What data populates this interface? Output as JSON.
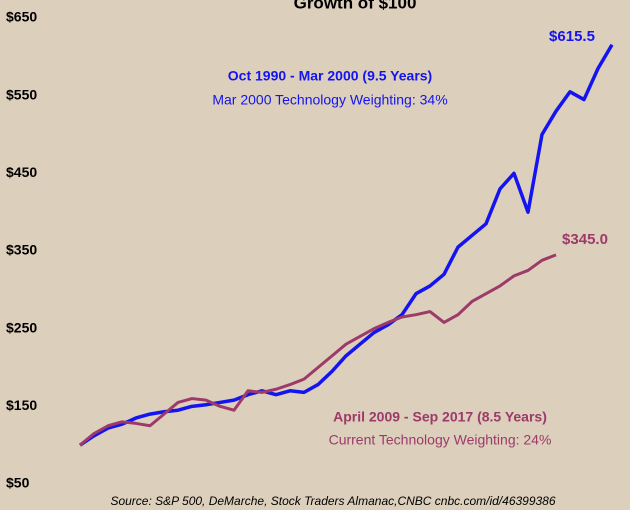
{
  "chart_data": {
    "type": "line",
    "title": "Growth of $100",
    "source": "Source: S&P 500, DeMarche, Stock Traders Almanac,CNBC cnbc.com/id/46399386",
    "ylim": [
      50,
      650
    ],
    "yticks": [
      {
        "value": 50,
        "label": "$50"
      },
      {
        "value": 150,
        "label": "$150"
      },
      {
        "value": 250,
        "label": "$250"
      },
      {
        "value": 350,
        "label": "$350"
      },
      {
        "value": 450,
        "label": "$450"
      },
      {
        "value": 550,
        "label": "$550"
      },
      {
        "value": 650,
        "label": "$650"
      }
    ],
    "series": [
      {
        "name": "Oct 1990 - Mar 2000 (9.5 Years)",
        "note": "Mar 2000 Technology Weighting: 34%",
        "color": "#1414f0",
        "end_label": "$615.5",
        "values": [
          100,
          112,
          122,
          127,
          135,
          140,
          143,
          145,
          150,
          152,
          155,
          158,
          165,
          170,
          165,
          170,
          168,
          178,
          195,
          215,
          230,
          245,
          255,
          268,
          295,
          305,
          320,
          355,
          370,
          385,
          430,
          450,
          400,
          500,
          530,
          555,
          545,
          585,
          615.5
        ]
      },
      {
        "name": "April 2009 - Sep 2017 (8.5 Years)",
        "note": "Current Technology Weighting: 24%",
        "color": "#9c3a6a",
        "end_label": "$345.0",
        "values": [
          100,
          115,
          125,
          130,
          128,
          125,
          140,
          155,
          160,
          158,
          150,
          145,
          170,
          168,
          172,
          178,
          185,
          200,
          215,
          230,
          240,
          250,
          258,
          265,
          268,
          272,
          258,
          268,
          285,
          295,
          305,
          318,
          325,
          338,
          345
        ]
      }
    ]
  }
}
